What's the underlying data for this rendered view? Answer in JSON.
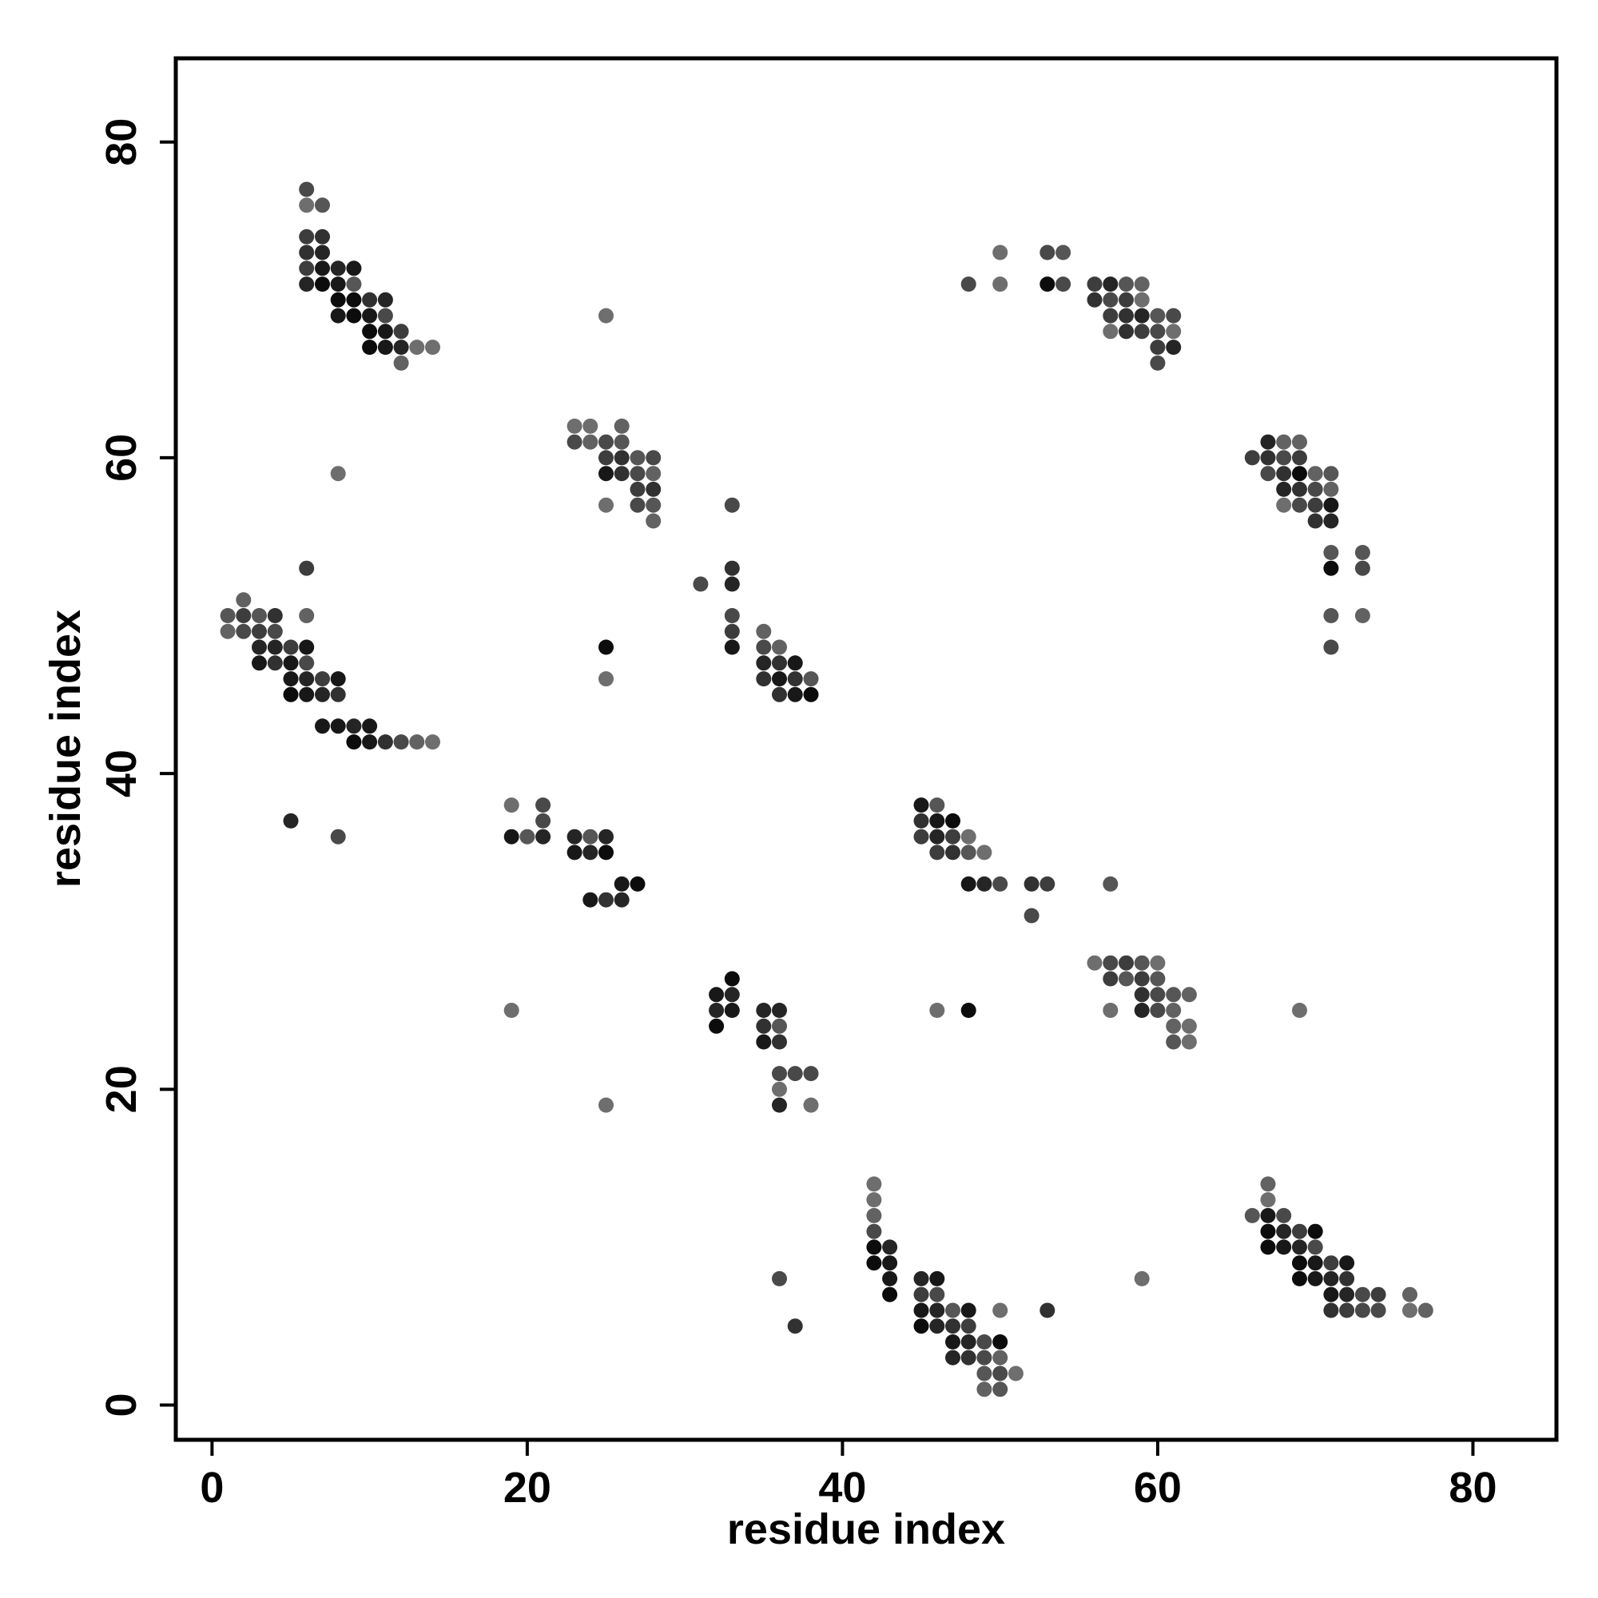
{
  "chart_data": {
    "type": "scatter",
    "title": "",
    "xlabel": "residue index",
    "ylabel": "residue index",
    "xlim": [
      -2.3,
      85.3
    ],
    "ylim": [
      -2.2,
      85.3
    ],
    "xticks": [
      0,
      20,
      40,
      60,
      80
    ],
    "yticks": [
      0,
      20,
      40,
      60,
      80
    ],
    "grid": false,
    "legend": "none",
    "colors": {
      "darkest": "#000000",
      "lightest": "#6e6e6e",
      "frame": "#000000"
    },
    "point_intensity_note_free": true,
    "points": [
      [
        6,
        77,
        0.3
      ],
      [
        6,
        76,
        0.45
      ],
      [
        7,
        76,
        0.35
      ],
      [
        6,
        74,
        0.25
      ],
      [
        7,
        74,
        0.2
      ],
      [
        6,
        73,
        0.2
      ],
      [
        7,
        73,
        0.15
      ],
      [
        6,
        72,
        0.25
      ],
      [
        7,
        72,
        0.1
      ],
      [
        8,
        72,
        0.15
      ],
      [
        9,
        72,
        0.1
      ],
      [
        6,
        71,
        0.15
      ],
      [
        7,
        71,
        0.05
      ],
      [
        8,
        71,
        0.1
      ],
      [
        9,
        71,
        0.35
      ],
      [
        8,
        70,
        0.05
      ],
      [
        9,
        70,
        0.05
      ],
      [
        10,
        70,
        0.2
      ],
      [
        11,
        70,
        0.15
      ],
      [
        8,
        69,
        0.1
      ],
      [
        9,
        69,
        0.05
      ],
      [
        10,
        69,
        0.1
      ],
      [
        11,
        69,
        0.3
      ],
      [
        10,
        68,
        0.05
      ],
      [
        11,
        68,
        0.1
      ],
      [
        12,
        68,
        0.25
      ],
      [
        10,
        67,
        0.05
      ],
      [
        11,
        67,
        0.1
      ],
      [
        12,
        67,
        0.15
      ],
      [
        13,
        67,
        0.45
      ],
      [
        14,
        67,
        0.45
      ],
      [
        12,
        66,
        0.4
      ],
      [
        8,
        59,
        0.45
      ],
      [
        25,
        69,
        0.45
      ],
      [
        23,
        62,
        0.45
      ],
      [
        24,
        62,
        0.45
      ],
      [
        26,
        62,
        0.4
      ],
      [
        23,
        61,
        0.3
      ],
      [
        24,
        61,
        0.4
      ],
      [
        25,
        61,
        0.3
      ],
      [
        26,
        61,
        0.35
      ],
      [
        25,
        60,
        0.25
      ],
      [
        26,
        60,
        0.2
      ],
      [
        27,
        60,
        0.35
      ],
      [
        28,
        60,
        0.3
      ],
      [
        25,
        59,
        0.1
      ],
      [
        26,
        59,
        0.2
      ],
      [
        27,
        59,
        0.3
      ],
      [
        28,
        59,
        0.4
      ],
      [
        27,
        58,
        0.25
      ],
      [
        28,
        58,
        0.2
      ],
      [
        25,
        57,
        0.45
      ],
      [
        27,
        57,
        0.3
      ],
      [
        28,
        57,
        0.35
      ],
      [
        28,
        56,
        0.4
      ],
      [
        48,
        71,
        0.3
      ],
      [
        50,
        73,
        0.45
      ],
      [
        50,
        71,
        0.45
      ],
      [
        53,
        73,
        0.3
      ],
      [
        54,
        73,
        0.35
      ],
      [
        53,
        71,
        0.05
      ],
      [
        54,
        71,
        0.3
      ],
      [
        56,
        71,
        0.25
      ],
      [
        57,
        71,
        0.15
      ],
      [
        58,
        71,
        0.35
      ],
      [
        59,
        71,
        0.4
      ],
      [
        56,
        70,
        0.2
      ],
      [
        57,
        70,
        0.3
      ],
      [
        58,
        70,
        0.25
      ],
      [
        59,
        70,
        0.45
      ],
      [
        57,
        69,
        0.25
      ],
      [
        58,
        69,
        0.2
      ],
      [
        59,
        69,
        0.15
      ],
      [
        60,
        69,
        0.35
      ],
      [
        61,
        69,
        0.3
      ],
      [
        57,
        68,
        0.45
      ],
      [
        58,
        68,
        0.2
      ],
      [
        59,
        68,
        0.25
      ],
      [
        60,
        68,
        0.3
      ],
      [
        61,
        68,
        0.45
      ],
      [
        60,
        67,
        0.25
      ],
      [
        61,
        67,
        0.15
      ],
      [
        60,
        66,
        0.3
      ],
      [
        66,
        60,
        0.25
      ],
      [
        67,
        61,
        0.15
      ],
      [
        68,
        61,
        0.4
      ],
      [
        69,
        61,
        0.4
      ],
      [
        67,
        60,
        0.2
      ],
      [
        68,
        60,
        0.3
      ],
      [
        69,
        60,
        0.25
      ],
      [
        67,
        59,
        0.3
      ],
      [
        68,
        59,
        0.2
      ],
      [
        69,
        59,
        0.05
      ],
      [
        70,
        59,
        0.4
      ],
      [
        71,
        59,
        0.35
      ],
      [
        68,
        58,
        0.15
      ],
      [
        69,
        58,
        0.2
      ],
      [
        70,
        58,
        0.3
      ],
      [
        71,
        58,
        0.4
      ],
      [
        68,
        57,
        0.45
      ],
      [
        69,
        57,
        0.3
      ],
      [
        70,
        57,
        0.25
      ],
      [
        71,
        57,
        0.1
      ],
      [
        70,
        56,
        0.2
      ],
      [
        71,
        56,
        0.15
      ],
      [
        71,
        54,
        0.35
      ],
      [
        73,
        54,
        0.35
      ],
      [
        71,
        53,
        0.05
      ],
      [
        73,
        53,
        0.3
      ],
      [
        71,
        50,
        0.35
      ],
      [
        73,
        50,
        0.4
      ],
      [
        71,
        48,
        0.3
      ],
      [
        2,
        51,
        0.4
      ],
      [
        1,
        50,
        0.35
      ],
      [
        2,
        50,
        0.25
      ],
      [
        3,
        50,
        0.35
      ],
      [
        4,
        50,
        0.2
      ],
      [
        1,
        49,
        0.4
      ],
      [
        2,
        49,
        0.3
      ],
      [
        3,
        49,
        0.25
      ],
      [
        4,
        49,
        0.3
      ],
      [
        6,
        53,
        0.25
      ],
      [
        6,
        50,
        0.4
      ],
      [
        3,
        48,
        0.15
      ],
      [
        4,
        48,
        0.15
      ],
      [
        5,
        48,
        0.25
      ],
      [
        6,
        48,
        0.1
      ],
      [
        3,
        47,
        0.1
      ],
      [
        4,
        47,
        0.2
      ],
      [
        5,
        47,
        0.1
      ],
      [
        6,
        47,
        0.3
      ],
      [
        5,
        46,
        0.1
      ],
      [
        6,
        46,
        0.15
      ],
      [
        7,
        46,
        0.25
      ],
      [
        8,
        46,
        0.1
      ],
      [
        5,
        45,
        0.05
      ],
      [
        6,
        45,
        0.1
      ],
      [
        7,
        45,
        0.15
      ],
      [
        8,
        45,
        0.2
      ],
      [
        7,
        43,
        0.1
      ],
      [
        8,
        43,
        0.1
      ],
      [
        9,
        43,
        0.15
      ],
      [
        10,
        43,
        0.1
      ],
      [
        9,
        42,
        0.05
      ],
      [
        10,
        42,
        0.1
      ],
      [
        11,
        42,
        0.2
      ],
      [
        12,
        42,
        0.3
      ],
      [
        13,
        42,
        0.4
      ],
      [
        14,
        42,
        0.45
      ],
      [
        5,
        37,
        0.15
      ],
      [
        8,
        36,
        0.3
      ],
      [
        25,
        48,
        0.05
      ],
      [
        25,
        46,
        0.45
      ],
      [
        31,
        52,
        0.3
      ],
      [
        33,
        57,
        0.3
      ],
      [
        33,
        53,
        0.2
      ],
      [
        33,
        52,
        0.15
      ],
      [
        33,
        50,
        0.3
      ],
      [
        33,
        49,
        0.25
      ],
      [
        33,
        48,
        0.1
      ],
      [
        35,
        49,
        0.4
      ],
      [
        35,
        48,
        0.3
      ],
      [
        36,
        48,
        0.4
      ],
      [
        35,
        47,
        0.15
      ],
      [
        36,
        47,
        0.2
      ],
      [
        37,
        47,
        0.1
      ],
      [
        35,
        46,
        0.2
      ],
      [
        36,
        46,
        0.1
      ],
      [
        37,
        46,
        0.2
      ],
      [
        38,
        46,
        0.35
      ],
      [
        36,
        45,
        0.2
      ],
      [
        37,
        45,
        0.1
      ],
      [
        38,
        45,
        0.05
      ],
      [
        19,
        38,
        0.45
      ],
      [
        21,
        38,
        0.3
      ],
      [
        21,
        37,
        0.3
      ],
      [
        19,
        36,
        0.1
      ],
      [
        20,
        36,
        0.35
      ],
      [
        21,
        36,
        0.15
      ],
      [
        23,
        36,
        0.15
      ],
      [
        24,
        36,
        0.35
      ],
      [
        25,
        36,
        0.15
      ],
      [
        23,
        35,
        0.1
      ],
      [
        24,
        35,
        0.15
      ],
      [
        25,
        35,
        0.05
      ],
      [
        26,
        33,
        0.1
      ],
      [
        27,
        33,
        0.05
      ],
      [
        24,
        32,
        0.1
      ],
      [
        25,
        32,
        0.2
      ],
      [
        26,
        32,
        0.15
      ],
      [
        45,
        38,
        0.1
      ],
      [
        46,
        38,
        0.35
      ],
      [
        45,
        37,
        0.2
      ],
      [
        46,
        37,
        0.1
      ],
      [
        47,
        37,
        0.05
      ],
      [
        45,
        36,
        0.25
      ],
      [
        46,
        36,
        0.15
      ],
      [
        47,
        36,
        0.25
      ],
      [
        48,
        36,
        0.45
      ],
      [
        46,
        35,
        0.25
      ],
      [
        47,
        35,
        0.2
      ],
      [
        48,
        35,
        0.35
      ],
      [
        49,
        35,
        0.45
      ],
      [
        48,
        33,
        0.1
      ],
      [
        49,
        33,
        0.15
      ],
      [
        50,
        33,
        0.3
      ],
      [
        52,
        33,
        0.2
      ],
      [
        53,
        33,
        0.25
      ],
      [
        52,
        31,
        0.3
      ],
      [
        57,
        33,
        0.35
      ],
      [
        32,
        26,
        0.1
      ],
      [
        33,
        27,
        0.05
      ],
      [
        33,
        26,
        0.15
      ],
      [
        32,
        25,
        0.15
      ],
      [
        33,
        25,
        0.1
      ],
      [
        32,
        24,
        0.05
      ],
      [
        35,
        25,
        0.15
      ],
      [
        36,
        25,
        0.15
      ],
      [
        35,
        24,
        0.2
      ],
      [
        36,
        24,
        0.35
      ],
      [
        35,
        23,
        0.1
      ],
      [
        36,
        23,
        0.2
      ],
      [
        36,
        21,
        0.3
      ],
      [
        37,
        21,
        0.3
      ],
      [
        38,
        21,
        0.3
      ],
      [
        36,
        20,
        0.45
      ],
      [
        36,
        19,
        0.15
      ],
      [
        38,
        19,
        0.45
      ],
      [
        19,
        25,
        0.45
      ],
      [
        25,
        19,
        0.45
      ],
      [
        56,
        28,
        0.45
      ],
      [
        57,
        28,
        0.3
      ],
      [
        58,
        28,
        0.25
      ],
      [
        59,
        28,
        0.35
      ],
      [
        60,
        28,
        0.45
      ],
      [
        57,
        27,
        0.25
      ],
      [
        58,
        27,
        0.35
      ],
      [
        59,
        27,
        0.25
      ],
      [
        60,
        27,
        0.35
      ],
      [
        59,
        26,
        0.2
      ],
      [
        60,
        26,
        0.3
      ],
      [
        61,
        26,
        0.35
      ],
      [
        62,
        26,
        0.4
      ],
      [
        57,
        25,
        0.45
      ],
      [
        59,
        25,
        0.15
      ],
      [
        60,
        25,
        0.3
      ],
      [
        61,
        25,
        0.4
      ],
      [
        61,
        24,
        0.4
      ],
      [
        62,
        24,
        0.45
      ],
      [
        61,
        23,
        0.35
      ],
      [
        62,
        23,
        0.45
      ],
      [
        46,
        25,
        0.45
      ],
      [
        48,
        25,
        0.05
      ],
      [
        69,
        25,
        0.45
      ],
      [
        42,
        14,
        0.45
      ],
      [
        42,
        13,
        0.45
      ],
      [
        42,
        12,
        0.4
      ],
      [
        42,
        11,
        0.3
      ],
      [
        42,
        10,
        0.05
      ],
      [
        43,
        10,
        0.15
      ],
      [
        42,
        9,
        0.05
      ],
      [
        43,
        9,
        0.1
      ],
      [
        43,
        8,
        0.1
      ],
      [
        43,
        7,
        0.05
      ],
      [
        45,
        8,
        0.15
      ],
      [
        46,
        8,
        0.1
      ],
      [
        45,
        7,
        0.25
      ],
      [
        46,
        7,
        0.3
      ],
      [
        45,
        6,
        0.1
      ],
      [
        46,
        6,
        0.15
      ],
      [
        47,
        6,
        0.35
      ],
      [
        48,
        6,
        0.1
      ],
      [
        45,
        5,
        0.05
      ],
      [
        46,
        5,
        0.15
      ],
      [
        47,
        5,
        0.2
      ],
      [
        48,
        5,
        0.25
      ],
      [
        47,
        4,
        0.1
      ],
      [
        48,
        4,
        0.15
      ],
      [
        49,
        4,
        0.3
      ],
      [
        50,
        4,
        0.05
      ],
      [
        47,
        3,
        0.15
      ],
      [
        48,
        3,
        0.2
      ],
      [
        49,
        3,
        0.3
      ],
      [
        50,
        3,
        0.4
      ],
      [
        49,
        2,
        0.35
      ],
      [
        50,
        2,
        0.3
      ],
      [
        51,
        2,
        0.45
      ],
      [
        49,
        1,
        0.4
      ],
      [
        50,
        1,
        0.35
      ],
      [
        50,
        6,
        0.45
      ],
      [
        53,
        6,
        0.2
      ],
      [
        36,
        8,
        0.3
      ],
      [
        37,
        5,
        0.2
      ],
      [
        66,
        12,
        0.35
      ],
      [
        67,
        14,
        0.4
      ],
      [
        67,
        13,
        0.45
      ],
      [
        67,
        12,
        0.1
      ],
      [
        68,
        12,
        0.3
      ],
      [
        67,
        11,
        0.05
      ],
      [
        68,
        11,
        0.15
      ],
      [
        69,
        11,
        0.25
      ],
      [
        70,
        11,
        0.05
      ],
      [
        67,
        10,
        0.05
      ],
      [
        68,
        10,
        0.1
      ],
      [
        69,
        10,
        0.15
      ],
      [
        70,
        10,
        0.3
      ],
      [
        69,
        9,
        0.05
      ],
      [
        70,
        9,
        0.1
      ],
      [
        71,
        9,
        0.25
      ],
      [
        72,
        9,
        0.1
      ],
      [
        69,
        8,
        0.05
      ],
      [
        70,
        8,
        0.1
      ],
      [
        71,
        8,
        0.15
      ],
      [
        72,
        8,
        0.2
      ],
      [
        71,
        7,
        0.1
      ],
      [
        72,
        7,
        0.15
      ],
      [
        73,
        7,
        0.3
      ],
      [
        74,
        7,
        0.25
      ],
      [
        76,
        7,
        0.4
      ],
      [
        71,
        6,
        0.2
      ],
      [
        72,
        6,
        0.25
      ],
      [
        73,
        6,
        0.3
      ],
      [
        74,
        6,
        0.3
      ],
      [
        76,
        6,
        0.45
      ],
      [
        77,
        6,
        0.4
      ],
      [
        59,
        8,
        0.45
      ]
    ]
  }
}
